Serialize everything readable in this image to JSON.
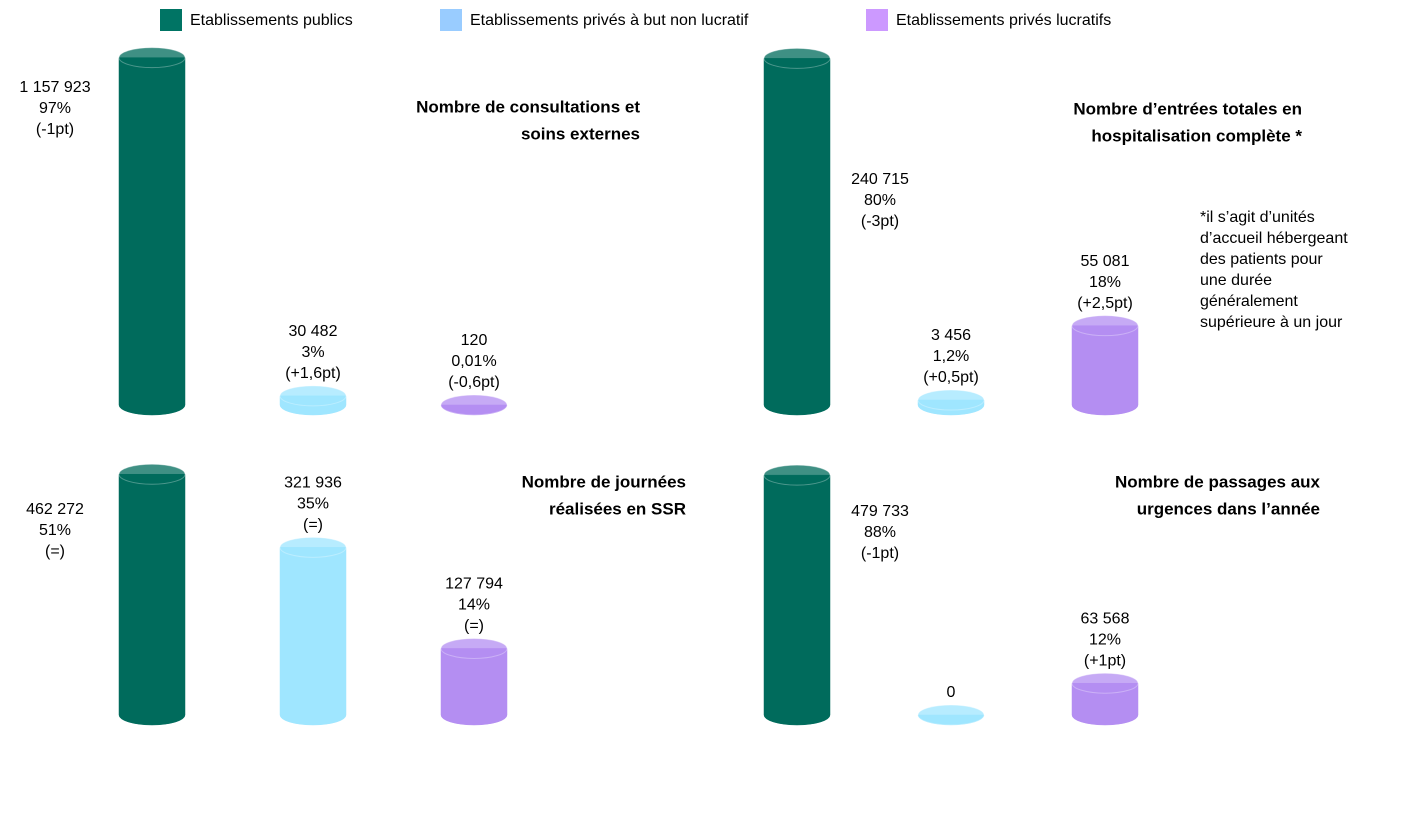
{
  "legend": [
    {
      "name": "Etablissements publics",
      "color": "#007464"
    },
    {
      "name": "Etablissements privés à but non lucratif",
      "color": "#99ccff"
    },
    {
      "name": "Etablissements privés lucratifs",
      "color": "#cc99ff"
    }
  ],
  "chart_data": [
    {
      "type": "bar",
      "title": [
        "Nombre de consultations et",
        "soins externes"
      ],
      "values": [
        1157923,
        30482,
        120
      ],
      "value_labels": [
        "1 157 923",
        "30 482",
        "120"
      ],
      "share_labels": [
        "97%",
        "3%",
        "0,01%"
      ],
      "change_labels": [
        "(-1pt)",
        "(+1,6pt)",
        "(-0,6pt)"
      ],
      "colors": [
        "#006b5c",
        "#9fe6ff",
        "#b48ef2"
      ],
      "ylim": [
        0,
        1200000
      ]
    },
    {
      "type": "bar",
      "title": [
        "Nombre d’entrées totales en",
        "hospitalisation complète *"
      ],
      "values": [
        240715,
        3456,
        55081
      ],
      "value_labels": [
        "240 715",
        "3 456",
        "55 081"
      ],
      "share_labels": [
        "80%",
        "1,2%",
        "18%"
      ],
      "change_labels": [
        "(-3pt)",
        "(+0,5pt)",
        "(+2,5pt)"
      ],
      "colors": [
        "#006b5c",
        "#9fe6ff",
        "#b48ef2"
      ],
      "ylim": [
        0,
        250000
      ],
      "note": [
        "*il s’agit d’unités",
        "d’accueil hébergeant",
        "des patients pour",
        "une durée",
        "généralement",
        "supérieure à un jour"
      ]
    },
    {
      "type": "bar",
      "title": [
        "Nombre de journées",
        "réalisées en SSR"
      ],
      "values": [
        462272,
        321936,
        127794
      ],
      "value_labels": [
        "462 272",
        "321 936",
        "127 794"
      ],
      "share_labels": [
        "51%",
        "35%",
        "14%"
      ],
      "change_labels": [
        "(=)",
        "(=)",
        "(=)"
      ],
      "colors": [
        "#006b5c",
        "#9fe6ff",
        "#b48ef2"
      ],
      "ylim": [
        0,
        480000
      ]
    },
    {
      "type": "bar",
      "title": [
        "Nombre de passages aux",
        "urgences dans l’année"
      ],
      "values": [
        479733,
        0,
        63568
      ],
      "value_labels": [
        "479 733",
        "0",
        "63 568"
      ],
      "share_labels": [
        "88%",
        null,
        "12%"
      ],
      "change_labels": [
        "(-1pt)",
        null,
        "(+1pt)"
      ],
      "colors": [
        "#006b5c",
        "#9fe6ff",
        "#b48ef2"
      ],
      "ylim": [
        0,
        500000
      ]
    }
  ]
}
